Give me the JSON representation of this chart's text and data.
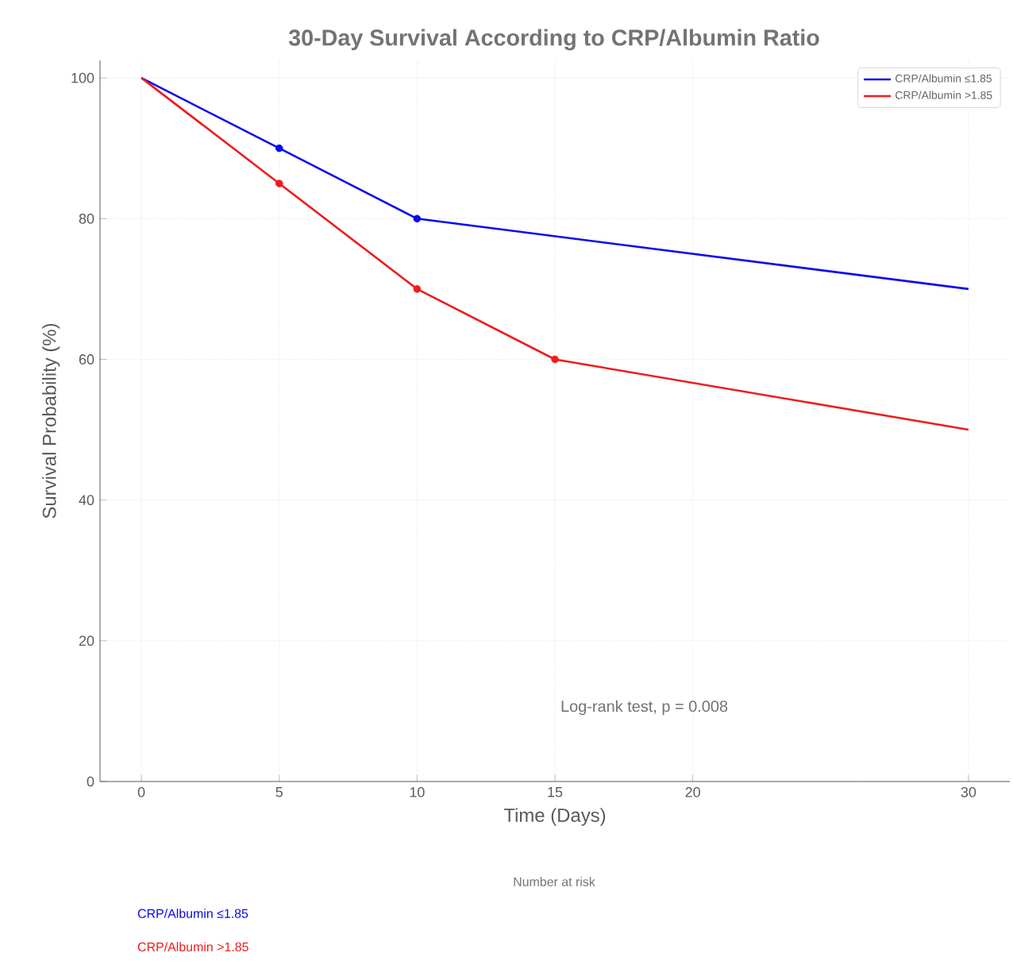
{
  "chart_data": {
    "type": "line",
    "title": "30-Day Survival According to CRP/Albumin Ratio",
    "xlabel": "Time (Days)",
    "ylabel": "Survival Probability (%)",
    "xlim": [
      -1.5,
      31.5
    ],
    "ylim": [
      0,
      102.5
    ],
    "xticks": [
      0,
      5,
      10,
      15,
      20,
      30
    ],
    "yticks": [
      0,
      20,
      40,
      60,
      80,
      100
    ],
    "grid": true,
    "legend": "top right",
    "line_style": "solid",
    "series": [
      {
        "name": "CRP/Albumin ≤1.85",
        "color": "#0a0aee",
        "x": [
          0,
          5,
          10,
          30
        ],
        "values": [
          100,
          90,
          80,
          70
        ]
      },
      {
        "name": "CRP/Albumin >1.85",
        "color": "#ee1c1c",
        "x": [
          0,
          5,
          10,
          15,
          30
        ],
        "values": [
          100,
          85,
          70,
          60,
          50
        ]
      },
      {
        "type": "scatter",
        "marker": "circle",
        "color": "#0a0aee",
        "x": [
          5,
          10
        ],
        "values": [
          90,
          80
        ]
      },
      {
        "type": "scatter",
        "marker": "circle",
        "color": "#ee1c1c",
        "x": [
          5,
          10,
          15
        ],
        "values": [
          85,
          70,
          60
        ]
      }
    ],
    "annotations": [
      "Log-rank test, p = 0.008",
      "Number at risk",
      "CRP/Albumin ≤1.85",
      "CRP/Albumin >1.85"
    ]
  }
}
